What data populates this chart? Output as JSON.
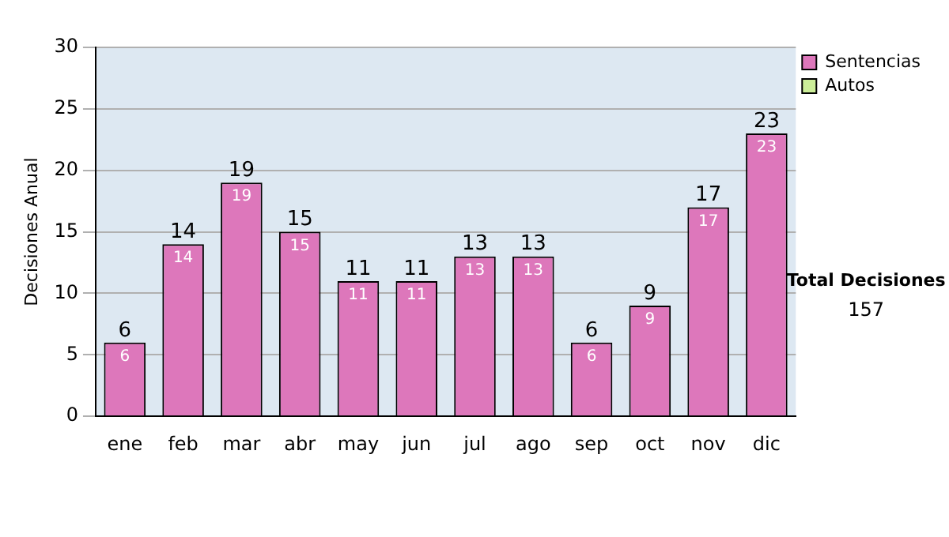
{
  "chart_data": {
    "type": "bar",
    "ylabel": "Decisiones Anual",
    "categories": [
      "ene",
      "feb",
      "mar",
      "abr",
      "may",
      "jun",
      "jul",
      "ago",
      "sep",
      "oct",
      "nov",
      "dic"
    ],
    "series": [
      {
        "name": "Sentencias",
        "color": "#dd77bb",
        "values": [
          6,
          14,
          19,
          15,
          11,
          11,
          13,
          13,
          6,
          9,
          17,
          23
        ]
      },
      {
        "name": "Autos",
        "color": "#ccee99",
        "values": [
          null,
          null,
          null,
          null,
          null,
          null,
          null,
          null,
          null,
          null,
          null,
          null
        ]
      }
    ],
    "stacked": true,
    "data_labels": true,
    "totals": [
      "6",
      "14",
      "19",
      "15",
      "11",
      "11",
      "13",
      "13",
      "6",
      "9",
      "17",
      "23"
    ],
    "ylim": [
      0,
      30
    ],
    "yticks": [
      0,
      5,
      10,
      15,
      20,
      25,
      30
    ],
    "grid": "y",
    "legend": "right",
    "annotations": [
      "Total Decisiones",
      "157"
    ]
  }
}
